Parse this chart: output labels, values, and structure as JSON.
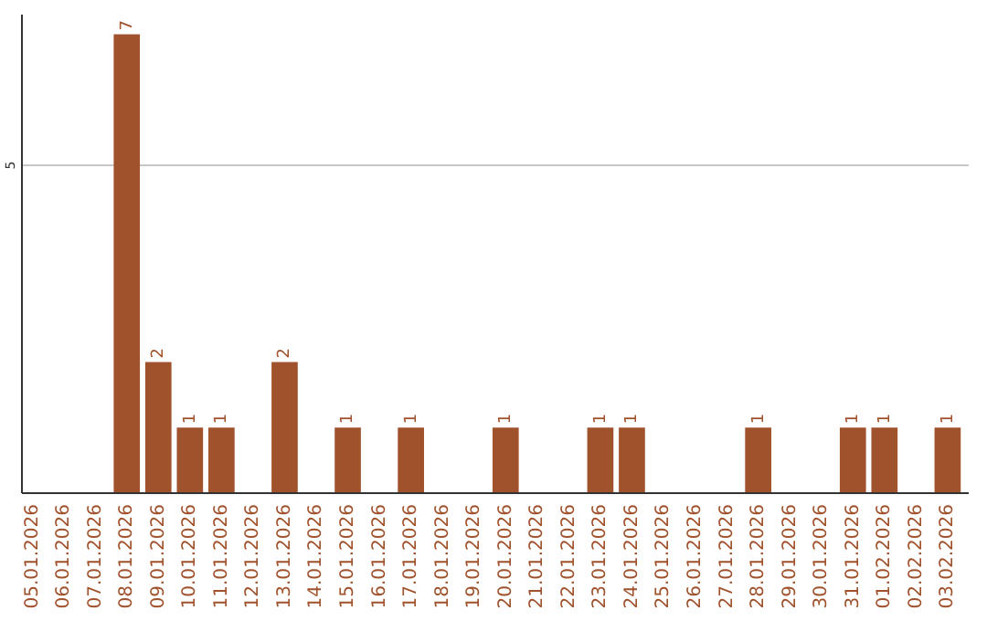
{
  "chart_data": {
    "type": "bar",
    "categories": [
      "05.01.2026",
      "06.01.2026",
      "07.01.2026",
      "08.01.2026",
      "09.01.2026",
      "10.01.2026",
      "11.01.2026",
      "12.01.2026",
      "13.01.2026",
      "14.01.2026",
      "15.01.2026",
      "16.01.2026",
      "17.01.2026",
      "18.01.2026",
      "19.01.2026",
      "20.01.2026",
      "21.01.2026",
      "22.01.2026",
      "23.01.2026",
      "24.01.2026",
      "25.01.2026",
      "26.01.2026",
      "27.01.2026",
      "28.01.2026",
      "29.01.2026",
      "30.01.2026",
      "31.01.2026",
      "01.02.2026",
      "02.02.2026",
      "03.02.2026"
    ],
    "values": [
      0,
      0,
      0,
      7,
      2,
      1,
      1,
      0,
      2,
      0,
      1,
      0,
      1,
      0,
      0,
      1,
      0,
      0,
      1,
      1,
      0,
      0,
      0,
      1,
      0,
      0,
      1,
      1,
      0,
      1
    ],
    "value_labels": [
      null,
      null,
      null,
      "7",
      "2",
      "1",
      "1",
      null,
      "2",
      null,
      "1",
      null,
      "1",
      null,
      null,
      "1",
      null,
      null,
      "1",
      "1",
      null,
      null,
      null,
      "1",
      null,
      null,
      "1",
      "1",
      null,
      "1"
    ],
    "color": "#a0522d",
    "ylim": [
      0,
      7.3
    ],
    "yticks": [
      5
    ],
    "grid": "y"
  }
}
